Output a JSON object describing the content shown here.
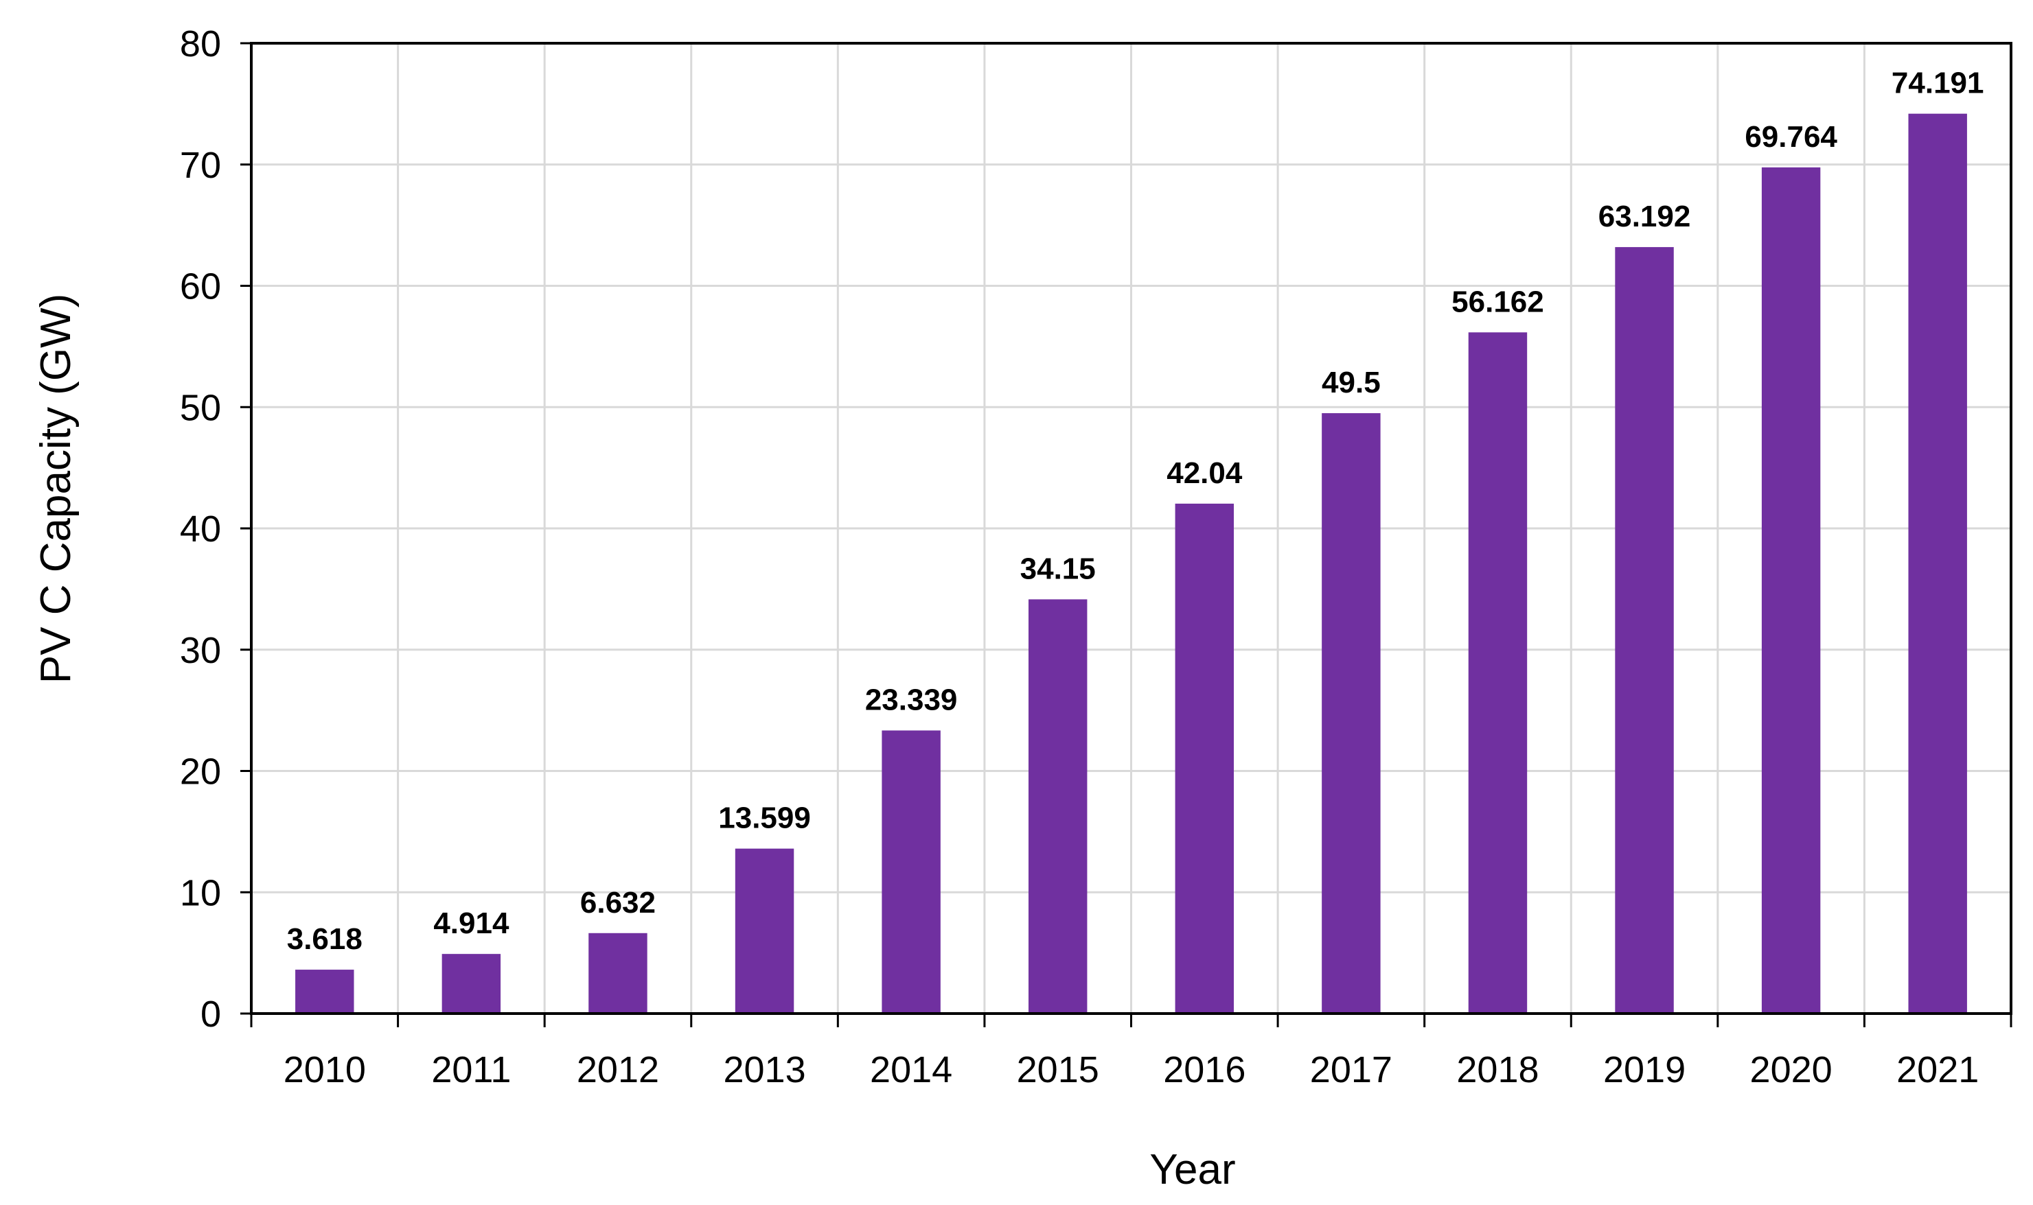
{
  "chart_data": {
    "type": "bar",
    "title": "",
    "xlabel": "Year",
    "ylabel": "PV C Capacity (GW)",
    "ylim": [
      0,
      80
    ],
    "yticks": [
      "0",
      "10",
      "20",
      "30",
      "40",
      "50",
      "60",
      "70",
      "80"
    ],
    "grid": true,
    "bar_color": "#7030A0",
    "categories": [
      "2010",
      "2011",
      "2012",
      "2013",
      "2014",
      "2015",
      "2016",
      "2017",
      "2018",
      "2019",
      "2020",
      "2021"
    ],
    "values": [
      3.618,
      4.914,
      6.632,
      13.599,
      23.339,
      34.15,
      42.04,
      49.5,
      56.162,
      63.192,
      69.764,
      74.191
    ],
    "data_labels": [
      "3.618",
      "4.914",
      "6.632",
      "13.599",
      "23.339",
      "34.15",
      "42.04",
      "49.5",
      "56.162",
      "63.192",
      "69.764",
      "74.191"
    ]
  }
}
